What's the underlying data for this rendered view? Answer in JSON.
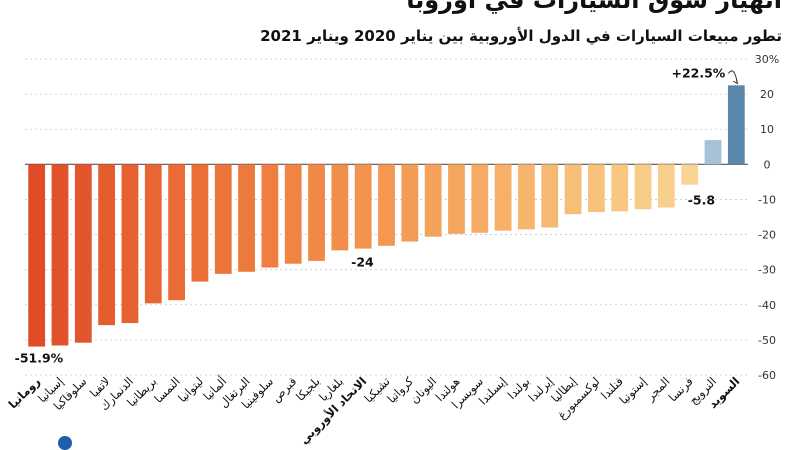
{
  "header": {
    "title": "انهيار سوق السيارات في أوروبا",
    "subtitle": "تطور مبيعات السيارات في الدول الأوروبية بين يناير 2020 ويناير 2021"
  },
  "chart_data": {
    "type": "bar",
    "title": "انهيار سوق السيارات في أوروبا",
    "subtitle": "تطور مبيعات السيارات في الدول الأوروبية بين يناير 2020 ويناير 2021",
    "ylim": [
      -60,
      30
    ],
    "yticks": [
      -60,
      -50,
      -40,
      -30,
      -20,
      -10,
      0,
      10,
      20,
      30
    ],
    "ytick_labels": [
      "-60",
      "-50",
      "-40",
      "-30",
      "-20",
      "-10",
      "0",
      "10",
      "20",
      "30%"
    ],
    "grid": true,
    "categories": [
      "رومانيا",
      "إسبانيا",
      "سلوفاكيا",
      "لاتفيا",
      "الدنمارك",
      "بريطانيا",
      "النمسا",
      "ليتوانيا",
      "ألمانيا",
      "البرتغال",
      "سلوفينيا",
      "قبرص",
      "بلجيكا",
      "بلغاريا",
      "الاتحاد الأوروبي",
      "تشيكيا",
      "كرواتيا",
      "اليونان",
      "هولندا",
      "سويسرا",
      "إيسلندا",
      "بولندا",
      "إيرلندا",
      "إيطاليا",
      "لوكسمبورغ",
      "فنلندا",
      "إستونيا",
      "المجر",
      "فرنسا",
      "النرويج",
      "السويد"
    ],
    "values": [
      -51.9,
      -51.6,
      -50.8,
      -45.8,
      -45.2,
      -39.6,
      -38.7,
      -33.4,
      -31.2,
      -30.6,
      -29.4,
      -28.3,
      -27.5,
      -24.5,
      -24,
      -23.2,
      -22,
      -20.6,
      -19.8,
      -19.5,
      -18.9,
      -18.5,
      -18,
      -14.2,
      -13.6,
      -13.4,
      -12.8,
      -12.3,
      -5.8,
      6.9,
      22.5
    ],
    "colors": [
      "#e04c28",
      "#e2522a",
      "#e3562b",
      "#e55d2e",
      "#e66130",
      "#e86633",
      "#e96b35",
      "#ea6f37",
      "#ec753b",
      "#ed7a3d",
      "#ee7f40",
      "#ef8443",
      "#f08946",
      "#f18e4a",
      "#f2934d",
      "#f39751",
      "#f39c55",
      "#f4a15a",
      "#f5a65e",
      "#f5ab63",
      "#f6b068",
      "#f6b56d",
      "#f7b972",
      "#f7be77",
      "#f8c27d",
      "#f8c782",
      "#f8cb88",
      "#f9cf8e",
      "#fad494",
      "#a7c1d6",
      "#5a87ac"
    ],
    "bold_categories": [
      "رومانيا",
      "الاتحاد الأوروبي",
      "السويد"
    ],
    "annotations": [
      {
        "label": "-51.9%",
        "category": "رومانيا"
      },
      {
        "label": "-24",
        "category": "الاتحاد الأوروبي"
      },
      {
        "label": "-5.8",
        "category": "فرنسا"
      },
      {
        "label": "+22.5%",
        "category": "السويد"
      }
    ]
  }
}
